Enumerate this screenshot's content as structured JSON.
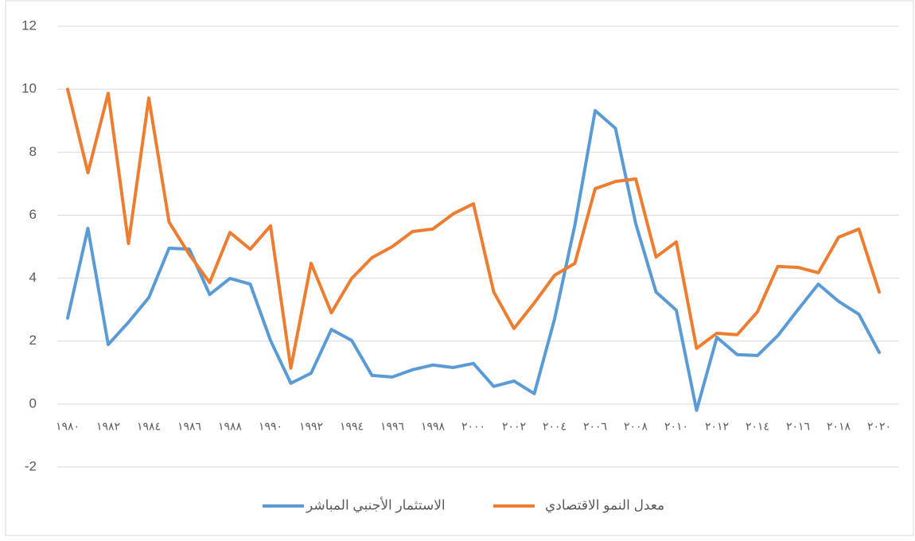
{
  "chart_data": {
    "type": "line",
    "categories": [
      "١٩٨٠",
      null,
      "١٩٨٢",
      null,
      "١٩٨٤",
      null,
      "١٩٨٦",
      null,
      "١٩٨٨",
      null,
      "١٩٩٠",
      null,
      "١٩٩٢",
      null,
      "١٩٩٤",
      null,
      "١٩٩٦",
      null,
      "١٩٩٨",
      null,
      "٢٠٠٠",
      null,
      "٢٠٠٢",
      null,
      "٢٠٠٤",
      null,
      "٢٠٠٦",
      null,
      "٢٠٠٨",
      null,
      "٢٠١٠",
      null,
      "٢٠١٢",
      null,
      "٢٠١٤",
      null,
      "٢٠١٦",
      null,
      "٢٠١٨",
      null,
      "٢٠٢٠"
    ],
    "series": [
      {
        "name": "الاستثمار الأجنبي المباشر",
        "color": "#5b9bd5",
        "values": [
          2.73,
          5.58,
          1.89,
          2.6,
          3.38,
          4.95,
          4.92,
          3.48,
          3.99,
          3.81,
          2.02,
          0.66,
          0.98,
          2.37,
          2.02,
          0.91,
          0.86,
          1.09,
          1.24,
          1.16,
          1.29,
          0.56,
          0.73,
          0.33,
          2.7,
          5.68,
          9.32,
          8.76,
          5.73,
          3.56,
          2.98,
          -0.2,
          2.12,
          1.57,
          1.54,
          2.17,
          3.0,
          3.81,
          3.26,
          2.85,
          1.64
        ]
      },
      {
        "name": "معدل النمو الاقتصادي",
        "color": "#ed7d31",
        "values": [
          10.0,
          7.35,
          9.87,
          5.1,
          9.72,
          5.78,
          4.75,
          3.86,
          5.45,
          4.92,
          5.66,
          1.14,
          4.47,
          2.9,
          3.99,
          4.65,
          5.0,
          5.48,
          5.56,
          6.04,
          6.36,
          3.56,
          2.4,
          3.21,
          4.09,
          4.47,
          6.84,
          7.07,
          7.15,
          4.67,
          5.15,
          1.77,
          2.25,
          2.2,
          2.93,
          4.37,
          4.34,
          4.17,
          5.3,
          5.56,
          3.56
        ]
      }
    ],
    "ylim": [
      -2,
      12
    ],
    "yticks": [
      -2,
      0,
      2,
      4,
      6,
      8,
      10,
      12
    ],
    "grid": true
  }
}
